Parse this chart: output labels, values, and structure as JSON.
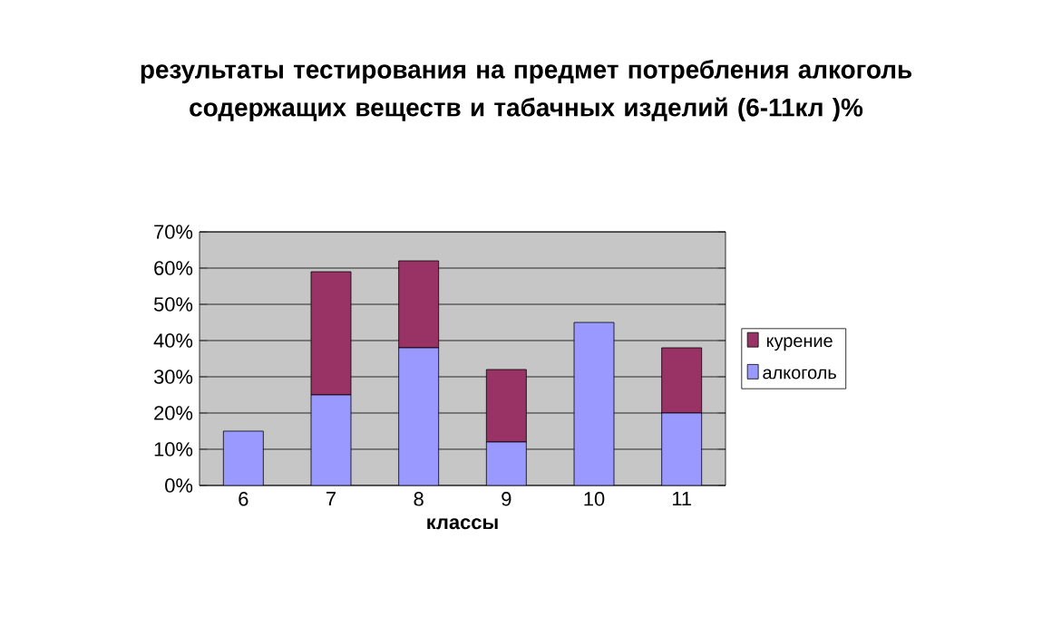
{
  "chart_data": {
    "type": "bar",
    "stacked": true,
    "title": "результаты тестирования на предмет потребления алкоголь содержащих веществ и табачных изделий (6-11кл )%",
    "xlabel": "классы",
    "categories": [
      "6",
      "7",
      "8",
      "9",
      "10",
      "11"
    ],
    "series": [
      {
        "name": "алкоголь",
        "color": "#9999ff",
        "values": [
          15,
          25,
          38,
          12,
          45,
          20
        ]
      },
      {
        "name": "курение",
        "color": "#993366",
        "values": [
          0,
          34,
          24,
          20,
          0,
          18
        ]
      }
    ],
    "ylim": [
      0,
      70
    ],
    "yticks": [
      {
        "value": 0,
        "label": "0%"
      },
      {
        "value": 10,
        "label": "10%"
      },
      {
        "value": 20,
        "label": "20%"
      },
      {
        "value": 30,
        "label": "30%"
      },
      {
        "value": 40,
        "label": "40%"
      },
      {
        "value": 50,
        "label": "50%"
      },
      {
        "value": 60,
        "label": "60%"
      },
      {
        "value": 70,
        "label": "70%"
      }
    ],
    "grid": "y",
    "legend": "right"
  }
}
